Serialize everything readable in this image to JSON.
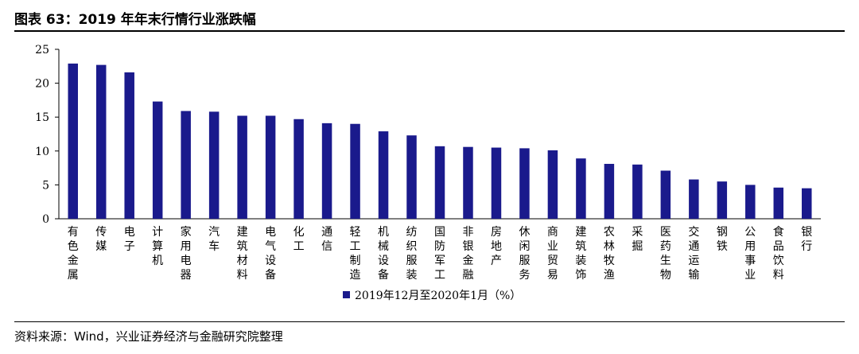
{
  "figure": {
    "title": "图表 63：2019 年年末行情行业涨跌幅",
    "source": "资料来源：Wind，兴业证券经济与金融研究院整理"
  },
  "colors": {
    "bar": "#1a1a8c",
    "axis": "#000000",
    "text": "#000000"
  },
  "chart_data": {
    "type": "bar",
    "categories": [
      "有色金属",
      "传媒",
      "电子",
      "计算机",
      "家用电器",
      "汽车",
      "建筑材料",
      "电气设备",
      "化工",
      "通信",
      "轻工制造",
      "机械设备",
      "纺织服装",
      "国防军工",
      "非银金融",
      "房地产",
      "休闲服务",
      "商业贸易",
      "建筑装饰",
      "农林牧渔",
      "采掘",
      "医药生物",
      "交通运输",
      "钢铁",
      "公用事业",
      "食品饮料",
      "银行"
    ],
    "series": [
      {
        "name": "2019年12月至2020年1月（%）",
        "values": [
          22.9,
          22.7,
          21.6,
          17.3,
          15.9,
          15.8,
          15.2,
          15.2,
          14.7,
          14.1,
          14.0,
          12.9,
          12.3,
          10.7,
          10.6,
          10.5,
          10.4,
          10.1,
          8.9,
          8.1,
          8.0,
          7.1,
          5.8,
          5.5,
          5.0,
          4.6,
          4.5
        ]
      }
    ],
    "yticks": [
      0,
      5,
      10,
      15,
      20,
      25
    ],
    "ylim": [
      0,
      25
    ],
    "grid": false,
    "legend_position": "bottom"
  }
}
